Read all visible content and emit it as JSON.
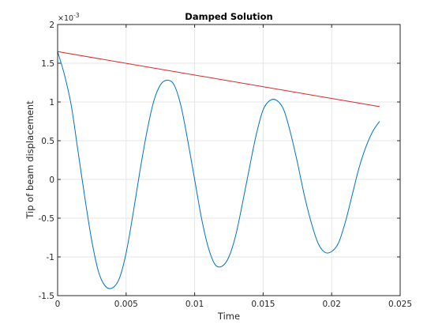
{
  "chart_data": {
    "type": "line",
    "title": "Damped Solution",
    "xlabel": "Time",
    "ylabel": "Tip of beam displacement",
    "y_exponent_label": "×10",
    "y_exponent_power": "-3",
    "xlim": [
      0,
      0.025
    ],
    "ylim": [
      -1.5,
      2
    ],
    "x_ticks": [
      0,
      0.005,
      0.01,
      0.015,
      0.02,
      0.025
    ],
    "x_tick_labels": [
      "0",
      "0.005",
      "0.01",
      "0.015",
      "0.02",
      "0.025"
    ],
    "y_ticks": [
      -1.5,
      -1,
      -0.5,
      0,
      0.5,
      1,
      1.5,
      2
    ],
    "y_tick_labels": [
      "-1.5",
      "-1",
      "-0.5",
      "0",
      "0.5",
      "1",
      "1.5",
      "2"
    ],
    "grid": true,
    "series": [
      {
        "color": "#0072bd",
        "x": [
          0,
          0.0005,
          0.001,
          0.0015,
          0.002,
          0.0025,
          0.003,
          0.0035,
          0.004,
          0.0045,
          0.005,
          0.0055,
          0.006,
          0.0065,
          0.007,
          0.0075,
          0.008,
          0.0085,
          0.009,
          0.0095,
          0.01,
          0.0105,
          0.011,
          0.0115,
          0.012,
          0.0125,
          0.013,
          0.0135,
          0.014,
          0.0145,
          0.015,
          0.0155,
          0.016,
          0.0165,
          0.017,
          0.0175,
          0.018,
          0.0185,
          0.019,
          0.0195,
          0.02,
          0.0205,
          0.021,
          0.0215,
          0.022,
          0.0225,
          0.023,
          0.0235
        ],
        "y": [
          1.65,
          1.35,
          0.95,
          0.35,
          -0.25,
          -0.8,
          -1.2,
          -1.38,
          -1.4,
          -1.28,
          -0.95,
          -0.45,
          0.1,
          0.6,
          1.0,
          1.22,
          1.28,
          1.22,
          0.95,
          0.5,
          0.0,
          -0.5,
          -0.88,
          -1.1,
          -1.12,
          -1.0,
          -0.72,
          -0.3,
          0.15,
          0.58,
          0.9,
          1.02,
          1.02,
          0.9,
          0.6,
          0.22,
          -0.2,
          -0.55,
          -0.82,
          -0.94,
          -0.93,
          -0.82,
          -0.55,
          -0.2,
          0.15,
          0.42,
          0.62,
          0.75
        ]
      },
      {
        "color": "#d62728",
        "x": [
          0,
          0.0235
        ],
        "y": [
          1.65,
          0.94
        ]
      }
    ]
  }
}
